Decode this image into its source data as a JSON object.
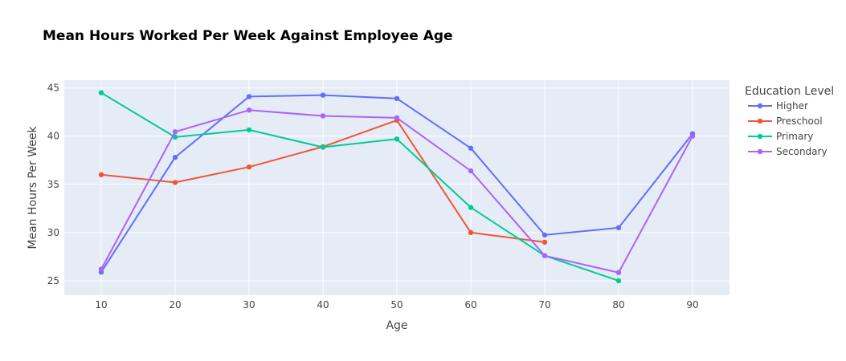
{
  "chart_data": {
    "type": "line",
    "title": "Mean Hours Worked Per Week Against Employee Age",
    "xlabel": "Age",
    "ylabel": "Mean Hours Per Week",
    "xlim": [
      5,
      95
    ],
    "ylim": [
      23.5,
      45.8
    ],
    "xticks": [
      10,
      20,
      30,
      40,
      50,
      60,
      70,
      80,
      90
    ],
    "yticks": [
      25,
      30,
      35,
      40,
      45
    ],
    "grid": true,
    "legend": {
      "title": "Education Level",
      "placement": "right"
    },
    "series": [
      {
        "name": "Higher",
        "color": "#636efa",
        "x": [
          10,
          20,
          30,
          40,
          50,
          60,
          70,
          80,
          90
        ],
        "y": [
          25.9,
          37.8,
          44.1,
          44.25,
          43.9,
          38.75,
          29.75,
          30.5,
          40.25
        ]
      },
      {
        "name": "Preschool",
        "color": "#ef553b",
        "x": [
          10,
          20,
          30,
          40,
          50,
          60,
          70
        ],
        "y": [
          36.0,
          35.2,
          36.8,
          38.9,
          41.65,
          30.0,
          29.0
        ]
      },
      {
        "name": "Primary",
        "color": "#00cc96",
        "x": [
          10,
          20,
          30,
          40,
          50,
          60,
          70,
          80
        ],
        "y": [
          44.5,
          39.9,
          40.65,
          38.85,
          39.7,
          32.6,
          27.6,
          25.0
        ]
      },
      {
        "name": "Secondary",
        "color": "#ab63fa",
        "x": [
          10,
          20,
          30,
          40,
          50,
          60,
          70,
          80,
          90
        ],
        "y": [
          26.2,
          40.45,
          42.7,
          42.1,
          41.9,
          36.4,
          27.6,
          25.85,
          40.0
        ]
      }
    ],
    "plot_bg": "#e5ecf6",
    "grid_color": "#ffffff"
  }
}
